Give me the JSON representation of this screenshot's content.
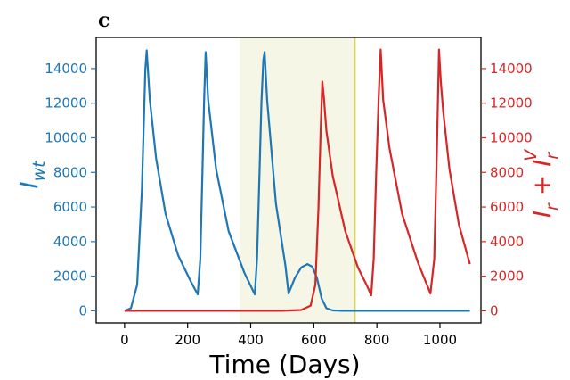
{
  "panel_label": "c",
  "chart_data": {
    "type": "line",
    "xlabel": "Time (Days)",
    "ylabel_left": "I_wt",
    "ylabel_right": "I_r + I_r^V",
    "xlim": [
      -90,
      1130
    ],
    "ylim": [
      -700,
      15800
    ],
    "x_ticks": [
      0,
      200,
      400,
      600,
      800,
      1000
    ],
    "y_ticks": [
      0,
      2000,
      4000,
      6000,
      8000,
      10000,
      12000,
      14000
    ],
    "shaded_region": {
      "x_start": 365,
      "x_end": 730,
      "color": "#f6f6e7"
    },
    "vertical_line": {
      "x": 730,
      "color": "#d4d45a"
    },
    "colors": {
      "left_axis": "#1f77b4",
      "right_axis": "#d62728"
    },
    "series": [
      {
        "axis": "left",
        "color": "#1f77b4",
        "x": [
          0,
          20,
          40,
          55,
          62,
          66,
          70,
          80,
          100,
          130,
          170,
          210,
          232,
          240,
          247,
          252,
          257,
          265,
          290,
          330,
          380,
          413,
          420,
          428,
          434,
          440,
          444,
          452,
          480,
          510,
          520,
          540,
          560,
          580,
          595,
          610,
          625,
          640,
          660,
          690,
          730,
          800,
          900,
          1000,
          1095
        ],
        "y": [
          0,
          150,
          1500,
          7000,
          11500,
          14000,
          15050,
          12200,
          8800,
          5600,
          3200,
          1700,
          950,
          3000,
          8000,
          12000,
          14950,
          12200,
          8200,
          4600,
          2200,
          950,
          3000,
          8000,
          12000,
          14500,
          14950,
          12200,
          6200,
          2600,
          1000,
          1900,
          2500,
          2700,
          2550,
          1900,
          700,
          150,
          20,
          0,
          0,
          0,
          0,
          0,
          0
        ]
      },
      {
        "axis": "right",
        "color": "#d62728",
        "x": [
          0,
          200,
          400,
          500,
          560,
          590,
          605,
          615,
          622,
          627,
          632,
          640,
          660,
          700,
          740,
          770,
          782,
          790,
          798,
          806,
          812,
          820,
          840,
          880,
          930,
          970,
          982,
          990,
          997,
          1003,
          1010,
          1030,
          1060,
          1095
        ],
        "y": [
          0,
          0,
          0,
          0,
          50,
          300,
          1500,
          6000,
          10500,
          13250,
          12300,
          10400,
          7800,
          4600,
          2500,
          1400,
          900,
          3000,
          8000,
          12500,
          15100,
          12200,
          9400,
          5600,
          2800,
          1000,
          3000,
          9000,
          15100,
          13200,
          11600,
          8200,
          5000,
          2700
        ]
      }
    ]
  }
}
